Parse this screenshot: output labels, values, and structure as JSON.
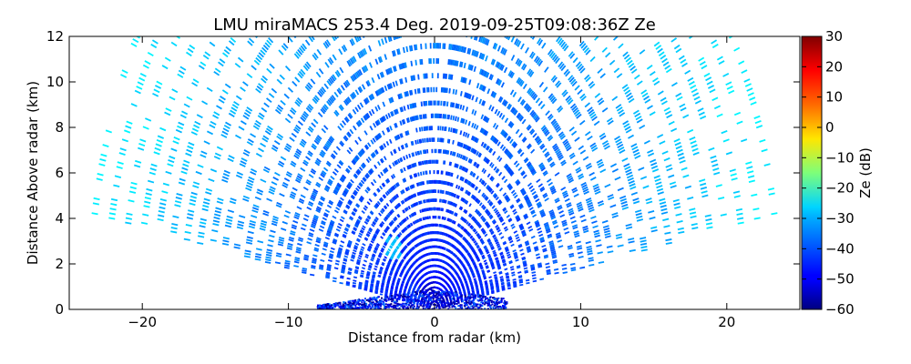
{
  "chart_data": {
    "type": "heatmap",
    "title": "LMU miraMACS 253.4 Deg. 2019-09-25T09:08:36Z  Ze",
    "xlabel": "Distance from radar (km)",
    "ylabel": "Distance Above radar  (km)",
    "xlim": [
      -25,
      25
    ],
    "ylim": [
      0,
      12
    ],
    "x_ticks": [
      -20,
      -10,
      0,
      10,
      20
    ],
    "x_tick_labels": [
      "−20",
      "−10",
      "0",
      "10",
      "20"
    ],
    "y_ticks": [
      0,
      2,
      4,
      6,
      8,
      10,
      12
    ],
    "y_tick_labels": [
      "0",
      "2",
      "4",
      "6",
      "8",
      "10",
      "12"
    ],
    "scan": {
      "azimuth_deg": 253.4,
      "max_range_km": 24.5,
      "elevation_min_deg": 10,
      "elevation_max_deg": 170
    },
    "features": [
      {
        "x": -2.8,
        "y": 2.7,
        "ze": -32
      },
      {
        "x": 0.5,
        "y": 1.2,
        "ze": -48
      },
      {
        "x": -1.5,
        "y": 0.6,
        "ze": -44
      }
    ],
    "colorbar": {
      "label": "Ze (dB)",
      "colormap": "jet",
      "min": -60,
      "max": 30,
      "ticks": [
        30,
        20,
        10,
        0,
        -10,
        -20,
        -30,
        -40,
        -50,
        -60
      ],
      "tick_labels": [
        "30",
        "20",
        "10",
        "0",
        "−10",
        "−20",
        "−30",
        "−40",
        "−50",
        "−60"
      ]
    },
    "grid": false
  }
}
